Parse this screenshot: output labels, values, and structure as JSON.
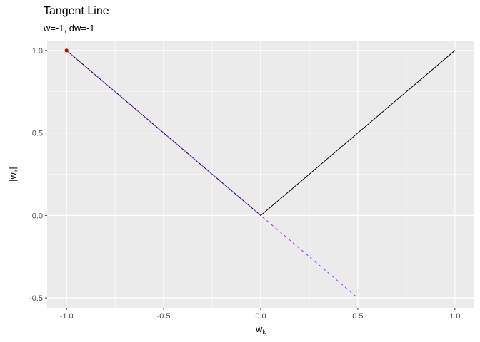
{
  "chart_data": {
    "type": "line",
    "title": "Tangent Line",
    "subtitle": "w=-1, dw=-1",
    "xlabel": {
      "base": "w",
      "sub": "k"
    },
    "ylabel": {
      "pre": "|w",
      "sub": "k",
      "post": "|"
    },
    "xlim": [
      -1.1,
      1.1
    ],
    "ylim": [
      -0.56,
      1.06
    ],
    "x_ticks": [
      -1.0,
      -0.5,
      0.0,
      0.5,
      1.0
    ],
    "x_tick_labels": [
      "-1.0",
      "-0.5",
      "0.0",
      "0.5",
      "1.0"
    ],
    "y_ticks": [
      -0.5,
      0.0,
      0.5,
      1.0
    ],
    "y_tick_labels": [
      "-0.5",
      "0.0",
      "0.5",
      "1.0"
    ],
    "grid": true,
    "series": [
      {
        "style": "solid",
        "color": "#000000",
        "x": [
          -1.0,
          0.0,
          1.0
        ],
        "y": [
          1.0,
          0.0,
          1.0
        ]
      },
      {
        "style": "dashed",
        "color": "#9b30ff",
        "x": [
          -1.0,
          0.5
        ],
        "y": [
          1.0,
          -0.5
        ]
      }
    ],
    "point": {
      "x": -1.0,
      "y": 1.0,
      "color": "#cc0000"
    }
  }
}
